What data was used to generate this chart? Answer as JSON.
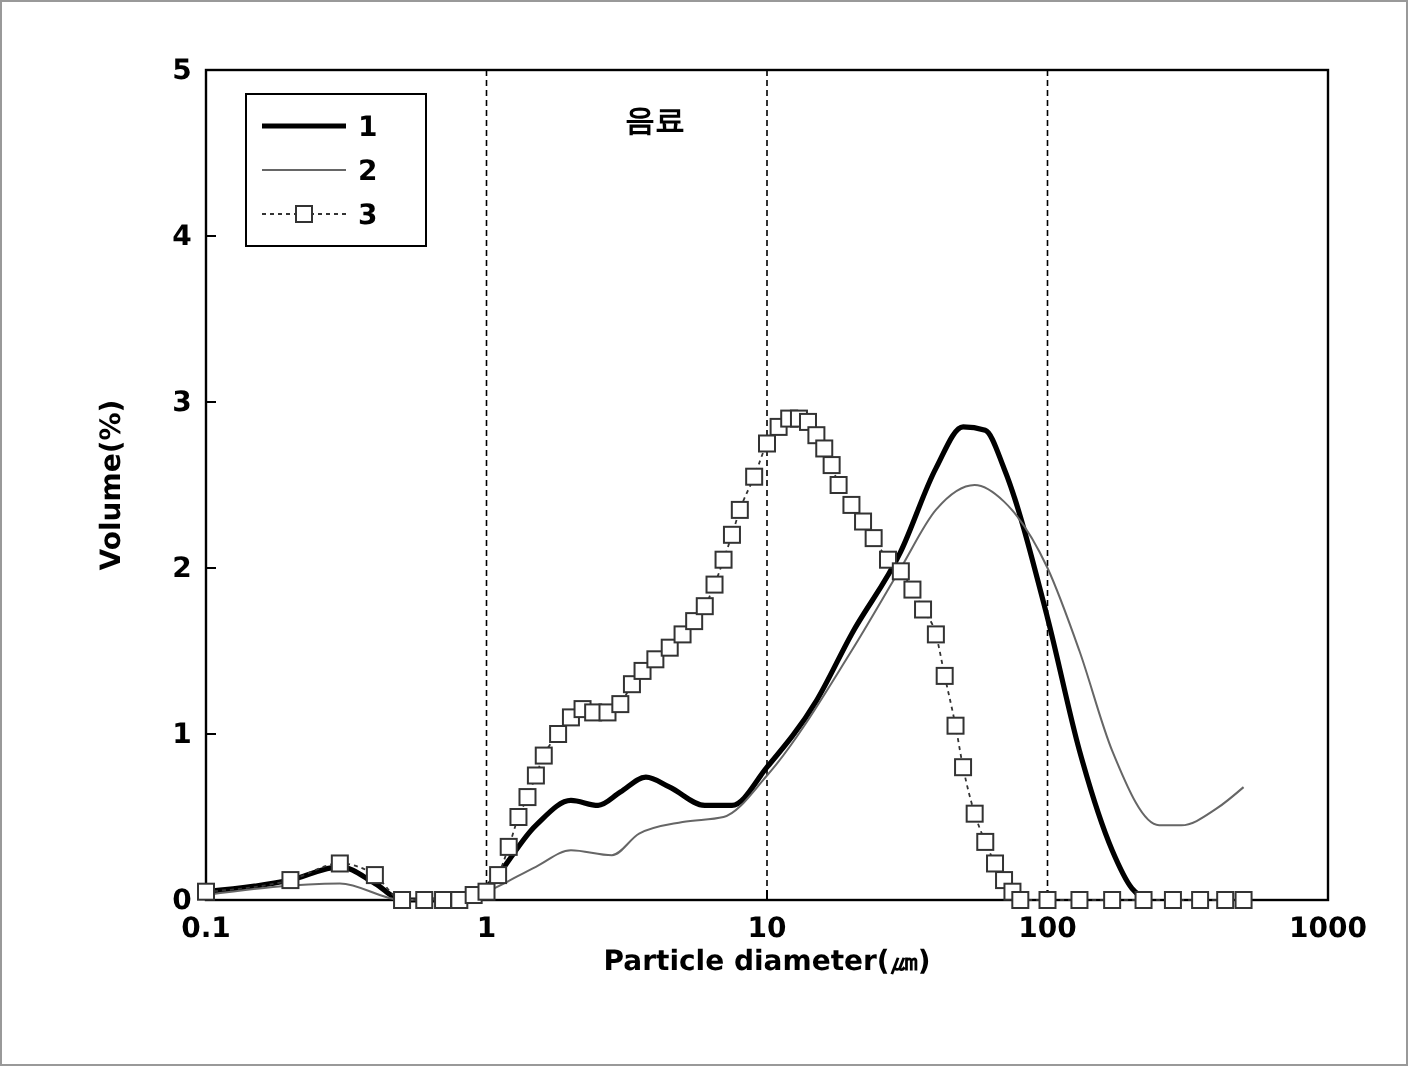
{
  "chart_data": {
    "type": "line",
    "title": "음료",
    "xlabel": "Particle diameter(㎛)",
    "ylabel": "Volume(%)",
    "log": "x",
    "xlim": [
      0.1,
      1000
    ],
    "xticks": [
      0.1,
      1,
      10,
      100,
      1000
    ],
    "ylim": [
      0,
      5
    ],
    "yticks": [
      0,
      1,
      2,
      3,
      4,
      5
    ],
    "grid": "x",
    "legend": "top left",
    "series": [
      {
        "name": "1",
        "color": "#000000",
        "marker": "none",
        "line_style": "solid",
        "x": [
          0.1,
          0.2,
          0.3,
          0.4,
          0.5,
          0.7,
          0.9,
          1,
          1.5,
          2,
          2.5,
          3,
          3.7,
          4.5,
          6,
          7.5,
          10,
          15,
          20,
          30,
          40,
          50,
          60,
          70,
          100,
          130,
          170,
          200,
          230
        ],
        "values": [
          0.05,
          0.12,
          0.2,
          0.1,
          0,
          0,
          0.03,
          0.08,
          0.45,
          0.6,
          0.57,
          0.65,
          0.74,
          0.68,
          0.57,
          0.57,
          0.8,
          1.2,
          1.6,
          2.1,
          2.6,
          2.85,
          2.83,
          2.6,
          1.7,
          0.9,
          0.3,
          0.07,
          0
        ]
      },
      {
        "name": "2",
        "color": "#666666",
        "marker": "none",
        "line_style": "solid",
        "x": [
          0.1,
          0.3,
          0.5,
          0.9,
          1,
          1.5,
          2,
          2.8,
          3.5,
          5,
          7,
          10,
          20,
          30,
          40,
          55,
          70,
          100,
          130,
          170,
          250,
          300,
          400,
          500
        ],
        "values": [
          0.03,
          0.1,
          0,
          0.02,
          0.05,
          0.2,
          0.3,
          0.27,
          0.4,
          0.47,
          0.5,
          0.75,
          1.5,
          2,
          2.35,
          2.5,
          2.4,
          2,
          1.5,
          0.9,
          0.45,
          0.45,
          0.55,
          0.68
        ]
      },
      {
        "name": "3",
        "color": "#333333",
        "marker": "square",
        "line_style": "dotted",
        "x": [
          0.1,
          0.2,
          0.3,
          0.4,
          0.5,
          0.6,
          0.7,
          0.8,
          0.9,
          1,
          1.1,
          1.2,
          1.3,
          1.4,
          1.5,
          1.6,
          1.8,
          2,
          2.2,
          2.4,
          2.7,
          3,
          3.3,
          3.6,
          4,
          4.5,
          5,
          5.5,
          6,
          6.5,
          7,
          7.5,
          8,
          9,
          10,
          11,
          12,
          13,
          14,
          15,
          16,
          17,
          18,
          20,
          22,
          24,
          27,
          30,
          33,
          36,
          40,
          43,
          47,
          50,
          55,
          60,
          65,
          70,
          75,
          80,
          100,
          130,
          170,
          220,
          280,
          350,
          430,
          500
        ],
        "values": [
          0.05,
          0.12,
          0.22,
          0.15,
          0,
          0,
          0,
          0,
          0.03,
          0.05,
          0.15,
          0.32,
          0.5,
          0.62,
          0.75,
          0.87,
          1,
          1.1,
          1.15,
          1.13,
          1.13,
          1.18,
          1.3,
          1.38,
          1.45,
          1.52,
          1.6,
          1.68,
          1.77,
          1.9,
          2.05,
          2.2,
          2.35,
          2.55,
          2.75,
          2.85,
          2.9,
          2.9,
          2.88,
          2.8,
          2.72,
          2.62,
          2.5,
          2.38,
          2.28,
          2.18,
          2.05,
          1.98,
          1.87,
          1.75,
          1.6,
          1.35,
          1.05,
          0.8,
          0.52,
          0.35,
          0.22,
          0.12,
          0.05,
          0,
          0,
          0,
          0,
          0,
          0,
          0,
          0,
          0
        ]
      }
    ]
  }
}
